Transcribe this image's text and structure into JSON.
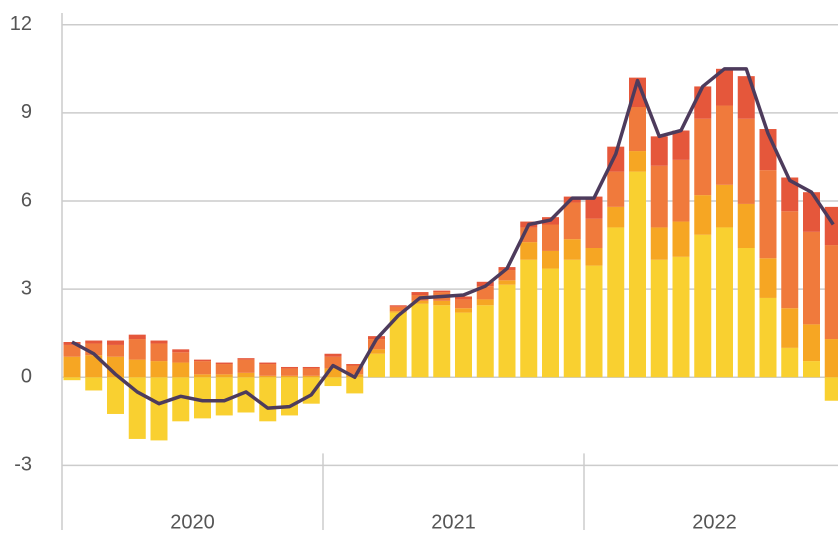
{
  "chart_data": {
    "type": "stacked_bar_line",
    "categories": [
      null,
      null,
      null,
      null,
      null,
      null,
      null,
      null,
      null,
      null,
      null,
      null,
      null,
      null,
      null,
      null,
      null,
      null,
      null,
      null,
      null,
      null,
      null,
      null,
      null,
      null,
      null,
      null,
      null,
      null,
      null,
      null,
      null,
      null,
      null,
      null
    ],
    "x_group_labels": [
      "2020",
      "2021",
      "2022"
    ],
    "series": [
      {
        "color": "#f9d030",
        "values": [
          -0.1,
          -0.45,
          -1.25,
          -2.1,
          -2.15,
          -1.5,
          -1.4,
          -1.3,
          -1.2,
          -1.5,
          -1.3,
          -0.9,
          -0.3,
          -0.55,
          0.8,
          2.2,
          2.5,
          2.45,
          2.2,
          2.45,
          3.15,
          4.0,
          3.7,
          4.0,
          3.8,
          5.1,
          7.0,
          4.0,
          4.1,
          4.85,
          5.1,
          4.4,
          2.7,
          1.0,
          0.55,
          -0.8
        ]
      },
      {
        "color": "#f6a623",
        "values": [
          0.7,
          0.75,
          0.7,
          0.6,
          0.55,
          0.5,
          0.1,
          0.1,
          0.15,
          0.05,
          0.05,
          0.05,
          0.3,
          0.1,
          0.15,
          0.05,
          0.1,
          0.15,
          0.15,
          0.2,
          0.15,
          0.6,
          0.6,
          0.7,
          0.6,
          0.7,
          0.7,
          1.1,
          1.2,
          1.35,
          1.45,
          1.5,
          1.35,
          1.35,
          1.25,
          1.3
        ]
      },
      {
        "color": "#f07a3c",
        "values": [
          0.4,
          0.4,
          0.4,
          0.7,
          0.6,
          0.35,
          0.45,
          0.35,
          0.45,
          0.4,
          0.25,
          0.25,
          0.4,
          0.3,
          0.35,
          0.15,
          0.2,
          0.3,
          0.3,
          0.45,
          0.35,
          0.5,
          0.9,
          1.25,
          1.0,
          1.2,
          1.5,
          2.1,
          2.1,
          2.6,
          2.7,
          2.9,
          3.0,
          3.3,
          3.15,
          3.2
        ]
      },
      {
        "color": "#e5573b",
        "values": [
          0.1,
          0.1,
          0.15,
          0.15,
          0.1,
          0.1,
          0.05,
          0.05,
          0.05,
          0.05,
          0.05,
          0.05,
          0.1,
          0.05,
          0.1,
          0.05,
          0.1,
          0.05,
          0.1,
          0.15,
          0.1,
          0.2,
          0.25,
          0.2,
          0.75,
          0.85,
          1.0,
          1.0,
          1.0,
          1.1,
          1.25,
          1.45,
          1.4,
          1.15,
          1.35,
          1.3
        ]
      }
    ],
    "line": {
      "color": "#4d3b5c",
      "values": [
        1.2,
        0.8,
        0.1,
        -0.5,
        -0.9,
        -0.65,
        -0.8,
        -0.8,
        -0.5,
        -1.05,
        -1.0,
        -0.6,
        0.4,
        0.0,
        1.3,
        2.1,
        2.7,
        2.75,
        2.8,
        3.1,
        3.7,
        5.2,
        5.35,
        6.1,
        6.1,
        7.6,
        10.1,
        8.2,
        8.4,
        9.9,
        10.5,
        10.5,
        8.3,
        6.7,
        6.3,
        5.2
      ]
    },
    "ylim": [
      -5.2,
      12.4
    ],
    "yticks": [
      -3,
      0,
      3,
      6,
      9,
      12
    ],
    "grid": true
  }
}
